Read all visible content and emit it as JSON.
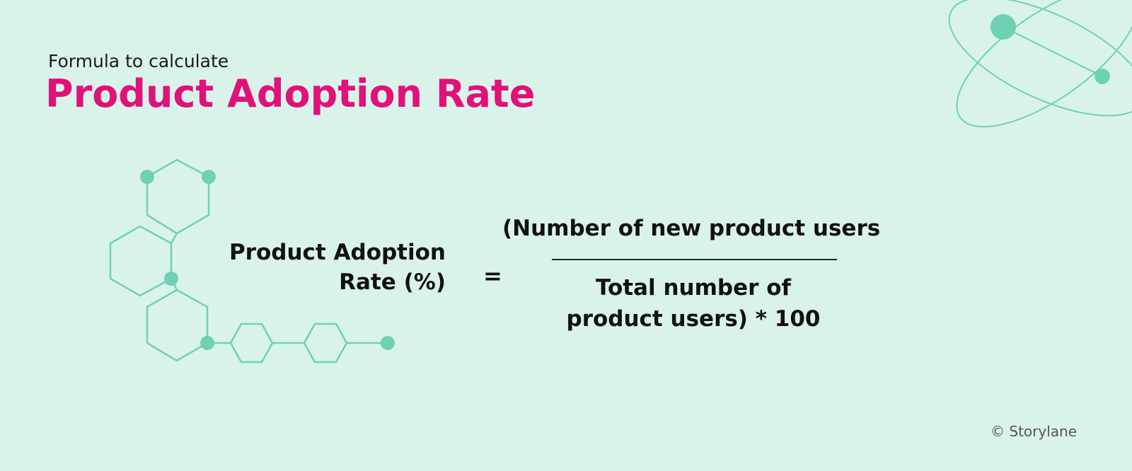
{
  "heading": {
    "kicker": "Formula to calculate",
    "title": "Product Adoption Rate"
  },
  "formula": {
    "lhs_line1": "Product Adoption",
    "lhs_line2": "Rate (%)",
    "equals": "=",
    "numerator": "(Number of new product users",
    "denominator_line1": "Total number of",
    "denominator_line2": "product users) * 100"
  },
  "credit": "© Storylane",
  "colors": {
    "background": "#d9f3ea",
    "title": "#e0127a",
    "accent": "#6fd1b4",
    "text": "#111111"
  },
  "icons": {
    "molecule": "hexagon-molecule-icon",
    "atom": "atom-orbit-icon"
  }
}
